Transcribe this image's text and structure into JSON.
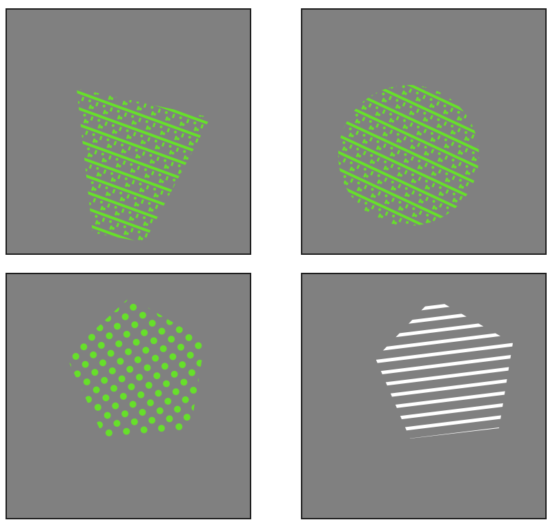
{
  "panels": [
    {
      "id": "trapezoid-panel",
      "shape": "trapezoid",
      "texture": "oblique-cross-stripes",
      "color": "#66e02a"
    },
    {
      "id": "circle-panel",
      "shape": "circle",
      "texture": "oblique-cross-stripes",
      "color": "#66e02a"
    },
    {
      "id": "pentagon-dots-panel",
      "shape": "pentagon",
      "texture": "dot-grid",
      "color": "#66e02a"
    },
    {
      "id": "pentagon-stripes-panel",
      "shape": "pentagon",
      "texture": "horizontal-stripes",
      "color": "#ffffff"
    }
  ],
  "colors": {
    "background": "#808080",
    "border": "#1e1e1e",
    "green": "#66e02a",
    "white": "#ffffff"
  }
}
